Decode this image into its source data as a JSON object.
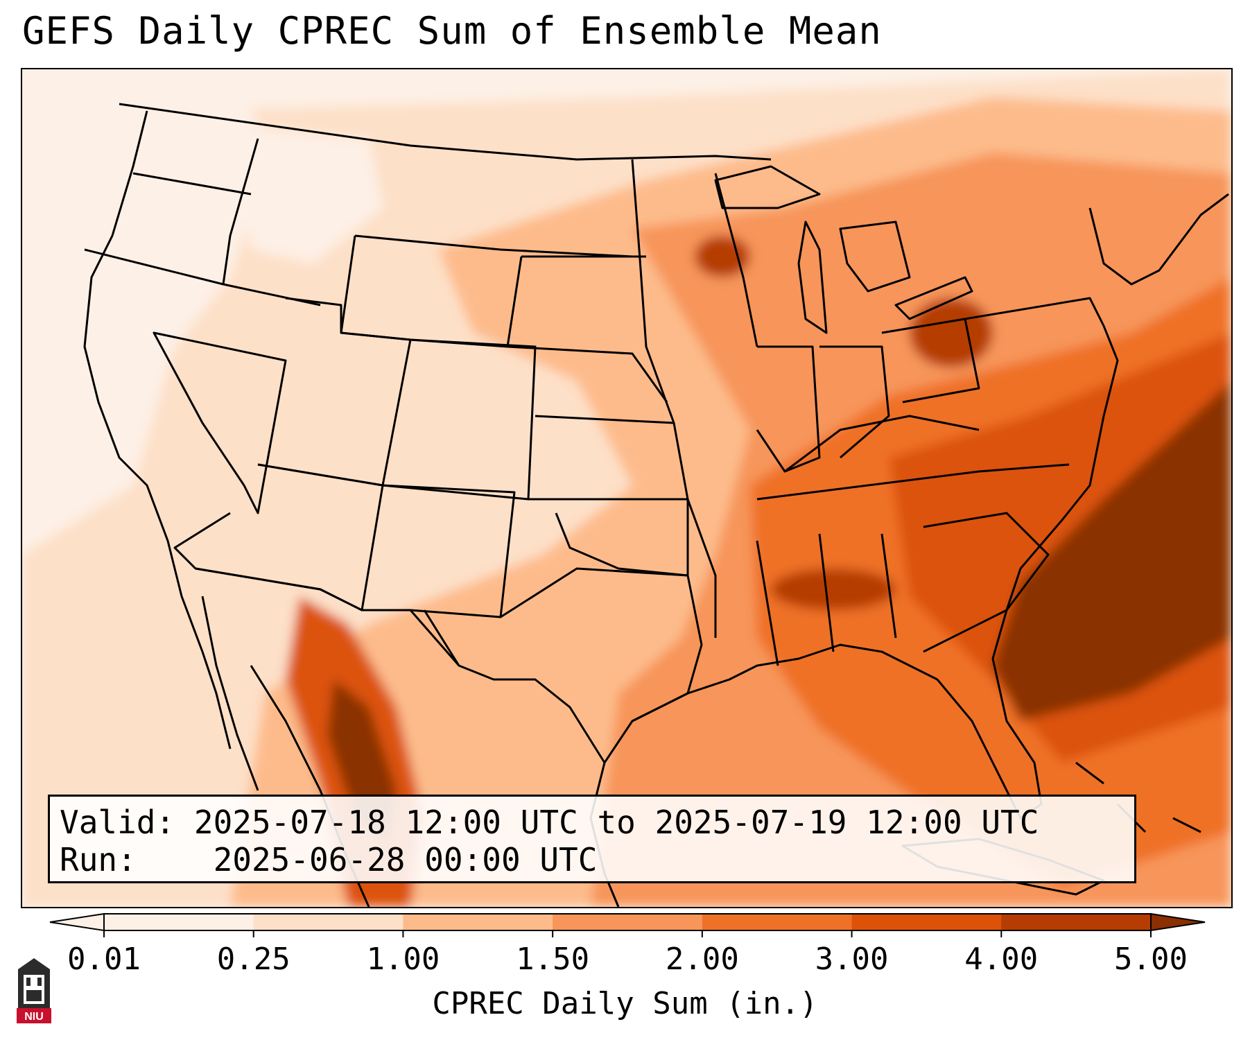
{
  "title": "GEFS Daily CPREC Sum of Ensemble Mean",
  "info": {
    "valid_label": "Valid:",
    "valid_value": "2025-07-18 12:00 UTC to 2025-07-19 12:00 UTC",
    "run_label": "Run:",
    "run_value": "2025-06-28 00:00 UTC"
  },
  "colorbar": {
    "label": "CPREC Daily Sum (in.)",
    "ticks": [
      "0.01",
      "0.25",
      "1.00",
      "1.50",
      "2.00",
      "3.00",
      "4.00",
      "5.00"
    ],
    "colors": [
      "#fdf0e6",
      "#fde0c8",
      "#fdbb8b",
      "#f7955a",
      "#ef7128",
      "#dc5208",
      "#b53c02",
      "#8a3003"
    ],
    "extend": "both"
  },
  "map": {
    "region": "CONUS",
    "field": "CPREC",
    "max_area": "Atlantic off the Carolinas",
    "colors": {
      "background": "#fdf0e6",
      "light": "#fde0c8",
      "medium": "#fdbb8b",
      "orange": "#f7955a",
      "deep": "#ef7128",
      "red": "#dc5208",
      "dark": "#8a3003",
      "boundary": "#000000"
    }
  },
  "logo": {
    "name": "niu-logo",
    "text": "NIU",
    "color": "#c8102e"
  }
}
